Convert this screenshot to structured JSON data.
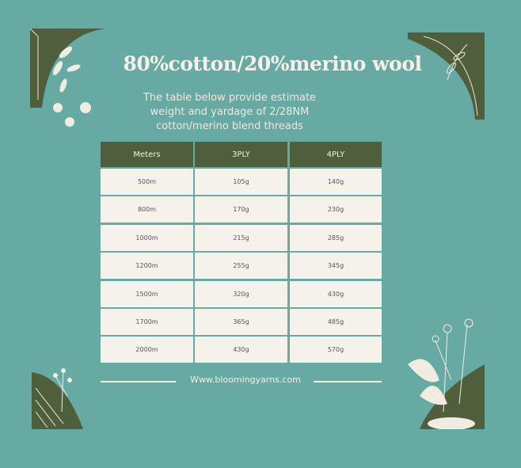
{
  "title": "80%cotton/20%merino wool",
  "subtitle": [
    "The table below provide estimate",
    "weight and yardage of 2/28NM",
    "cotton/merino blend threads"
  ],
  "table": {
    "headers": [
      "Meters",
      "3PLY",
      "4PLY"
    ],
    "rows": [
      [
        "500m",
        "105g",
        "140g"
      ],
      [
        "800m",
        "170g",
        "230g"
      ],
      [
        "1000m",
        "215g",
        "285g"
      ],
      [
        "1200m",
        "255g",
        "345g"
      ],
      [
        "1500m",
        "320g",
        "430g"
      ],
      [
        "1700m",
        "365g",
        "485g"
      ],
      [
        "2000m",
        "430g",
        "570g"
      ]
    ]
  },
  "footer": "Www.bloomingyarns.com",
  "colors": {
    "background": "#67a9a3",
    "header": "#4f5f3c",
    "cell": "#f5f2ec",
    "text_light": "#f5f1e9"
  },
  "decorations": [
    "floral-corner-top-left",
    "floral-corner-top-right",
    "floral-corner-bottom-left",
    "floral-corner-bottom-right"
  ]
}
